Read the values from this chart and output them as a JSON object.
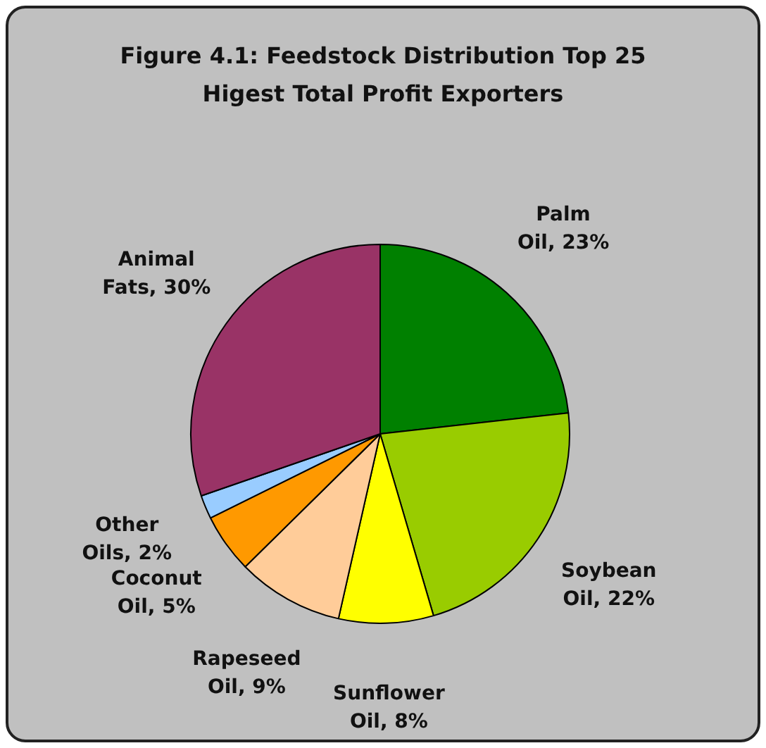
{
  "chart_data": {
    "type": "pie",
    "title": "Figure 4.1: Feedstock Distribution Top 25 Higest Total Profit Exporters",
    "categories": [
      "Palm Oil",
      "Soybean Oil",
      "Sunflower Oil",
      "Rapeseed Oil",
      "Coconut Oil",
      "Other Oils",
      "Animal Fats"
    ],
    "values": [
      23,
      22,
      8,
      9,
      5,
      2,
      30
    ],
    "value_labels": [
      "23%",
      "22%",
      "8%",
      "9%",
      "5%",
      "2%",
      "30%"
    ],
    "colors": [
      "#008000",
      "#99cc00",
      "#ffff00",
      "#ffcc99",
      "#ff9900",
      "#99ccff",
      "#993366"
    ]
  }
}
